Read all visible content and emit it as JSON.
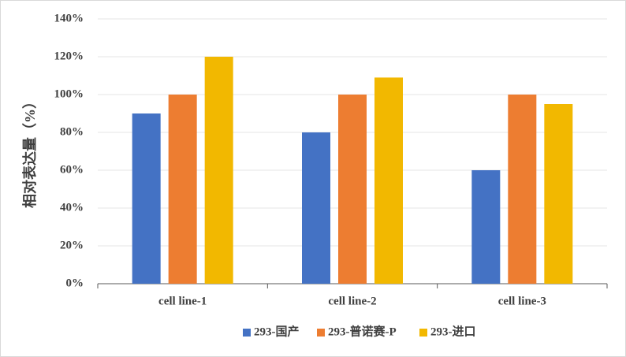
{
  "chart_data": {
    "type": "bar",
    "y_label": "相对表达量（%）",
    "categories": [
      "cell line-1",
      "cell line-2",
      "cell line-3"
    ],
    "series": [
      {
        "name": "293-国产",
        "color": "#4472c4",
        "values": [
          90,
          80,
          60
        ]
      },
      {
        "name": "293-普诺赛-P",
        "color": "#ed7d31",
        "values": [
          100,
          100,
          100
        ]
      },
      {
        "name": "293-进口",
        "color": "#f2b800",
        "values": [
          120,
          109,
          95
        ]
      }
    ],
    "ylim": [
      0,
      140
    ],
    "yticks": [
      {
        "value": 0,
        "label": "0%"
      },
      {
        "value": 20,
        "label": "20%"
      },
      {
        "value": 40,
        "label": "40%"
      },
      {
        "value": 60,
        "label": "60%"
      },
      {
        "value": 80,
        "label": "80%"
      },
      {
        "value": 100,
        "label": "100%"
      },
      {
        "value": 120,
        "label": "120%"
      },
      {
        "value": 140,
        "label": "140%"
      }
    ],
    "grid": true,
    "legend": "bottom"
  }
}
